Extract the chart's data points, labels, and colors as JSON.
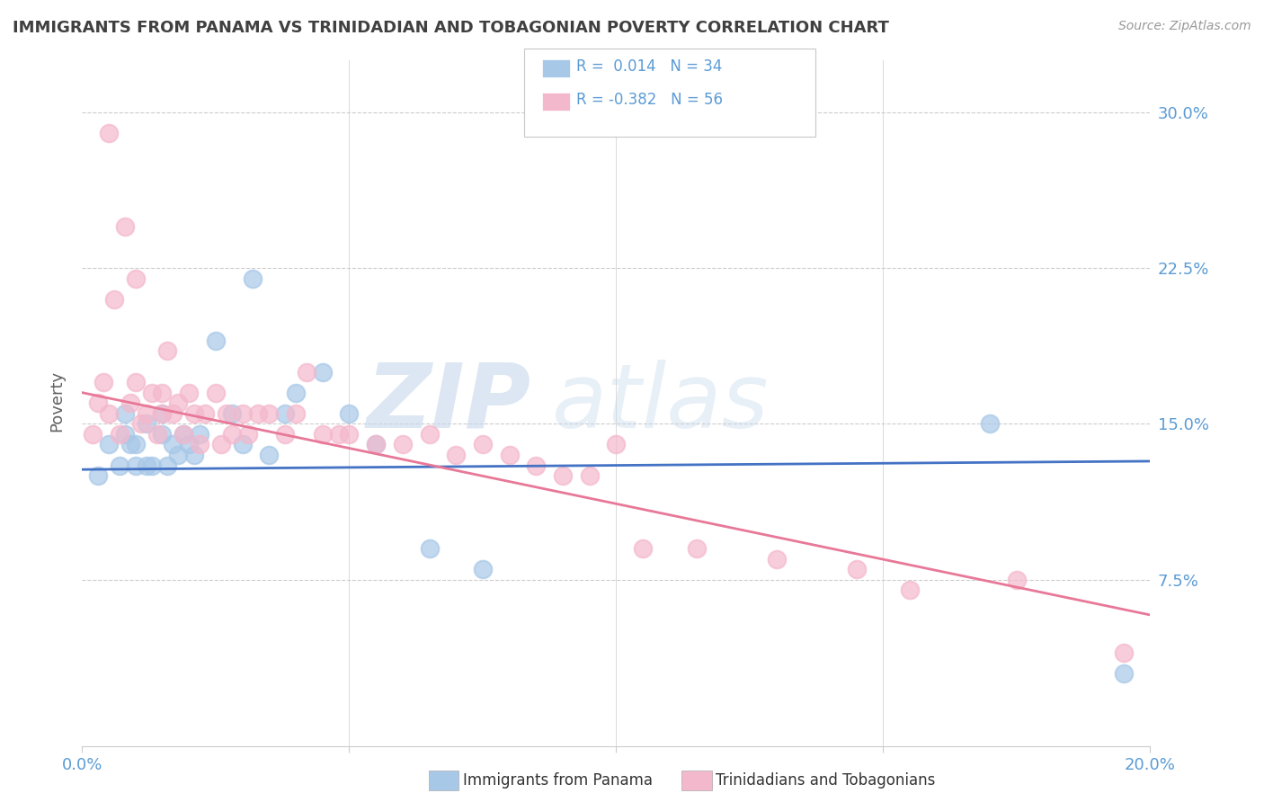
{
  "title": "IMMIGRANTS FROM PANAMA VS TRINIDADIAN AND TOBAGONIAN POVERTY CORRELATION CHART",
  "source": "Source: ZipAtlas.com",
  "ylabel": "Poverty",
  "yticks": [
    0.0,
    0.075,
    0.15,
    0.225,
    0.3
  ],
  "ytick_labels": [
    "",
    "7.5%",
    "15.0%",
    "22.5%",
    "30.0%"
  ],
  "xlim": [
    0.0,
    0.2
  ],
  "ylim": [
    -0.005,
    0.325
  ],
  "watermark_zip": "ZIP",
  "watermark_atlas": "atlas",
  "legend_r1": "R =  0.014",
  "legend_n1": "N = 34",
  "legend_r2": "R = -0.382",
  "legend_n2": "N = 56",
  "legend_label1": "Immigrants from Panama",
  "legend_label2": "Trinidadians and Tobagonians",
  "blue_color": "#a8c8e8",
  "pink_color": "#f4b8cc",
  "blue_line_color": "#4472c4",
  "pink_line_color": "#e87898",
  "title_color": "#404040",
  "axis_color": "#5b9bd5",
  "grid_color": "#cccccc",
  "blue_scatter_x": [
    0.003,
    0.005,
    0.007,
    0.008,
    0.008,
    0.009,
    0.01,
    0.01,
    0.012,
    0.012,
    0.013,
    0.015,
    0.015,
    0.016,
    0.017,
    0.018,
    0.019,
    0.02,
    0.021,
    0.022,
    0.025,
    0.028,
    0.03,
    0.032,
    0.035,
    0.038,
    0.04,
    0.045,
    0.05,
    0.055,
    0.065,
    0.075,
    0.17,
    0.195
  ],
  "blue_scatter_y": [
    0.125,
    0.14,
    0.13,
    0.145,
    0.155,
    0.14,
    0.14,
    0.13,
    0.15,
    0.13,
    0.13,
    0.155,
    0.145,
    0.13,
    0.14,
    0.135,
    0.145,
    0.14,
    0.135,
    0.145,
    0.19,
    0.155,
    0.14,
    0.22,
    0.135,
    0.155,
    0.165,
    0.175,
    0.155,
    0.14,
    0.09,
    0.08,
    0.15,
    0.03
  ],
  "pink_scatter_x": [
    0.002,
    0.003,
    0.004,
    0.005,
    0.005,
    0.006,
    0.007,
    0.008,
    0.009,
    0.01,
    0.01,
    0.011,
    0.012,
    0.013,
    0.014,
    0.015,
    0.015,
    0.016,
    0.017,
    0.018,
    0.019,
    0.02,
    0.021,
    0.022,
    0.023,
    0.025,
    0.026,
    0.027,
    0.028,
    0.03,
    0.031,
    0.033,
    0.035,
    0.038,
    0.04,
    0.042,
    0.045,
    0.048,
    0.05,
    0.055,
    0.06,
    0.065,
    0.07,
    0.075,
    0.08,
    0.085,
    0.09,
    0.095,
    0.1,
    0.105,
    0.115,
    0.13,
    0.145,
    0.155,
    0.175,
    0.195
  ],
  "pink_scatter_y": [
    0.145,
    0.16,
    0.17,
    0.29,
    0.155,
    0.21,
    0.145,
    0.245,
    0.16,
    0.22,
    0.17,
    0.15,
    0.155,
    0.165,
    0.145,
    0.165,
    0.155,
    0.185,
    0.155,
    0.16,
    0.145,
    0.165,
    0.155,
    0.14,
    0.155,
    0.165,
    0.14,
    0.155,
    0.145,
    0.155,
    0.145,
    0.155,
    0.155,
    0.145,
    0.155,
    0.175,
    0.145,
    0.145,
    0.145,
    0.14,
    0.14,
    0.145,
    0.135,
    0.14,
    0.135,
    0.13,
    0.125,
    0.125,
    0.14,
    0.09,
    0.09,
    0.085,
    0.08,
    0.07,
    0.075,
    0.04
  ],
  "blue_line_x": [
    0.0,
    0.2
  ],
  "blue_line_y": [
    0.128,
    0.132
  ],
  "pink_line_x": [
    0.0,
    0.2
  ],
  "pink_line_y": [
    0.165,
    0.058
  ]
}
